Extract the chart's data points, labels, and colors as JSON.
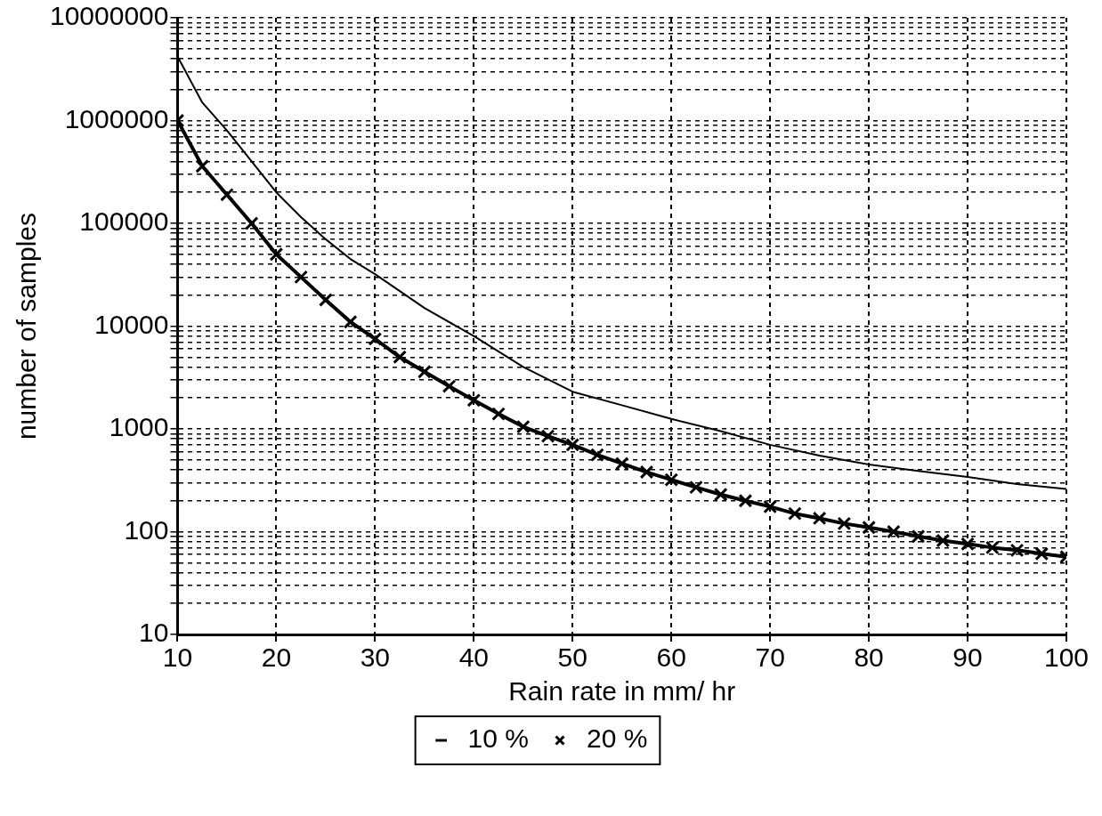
{
  "chart_data": {
    "type": "line",
    "xlabel": "Rain rate in mm/ hr",
    "ylabel": "number of samples",
    "log": "y",
    "grid": true,
    "legend": "bottom",
    "xlim": [
      10,
      100
    ],
    "xticks": [
      10,
      20,
      30,
      40,
      50,
      60,
      70,
      80,
      90,
      100
    ],
    "ylim": [
      10,
      10000000
    ],
    "yticks": [
      10,
      {
        "value": 20,
        "label": null
      },
      {
        "value": 30,
        "label": null
      },
      {
        "value": 40,
        "label": null
      },
      {
        "value": 50,
        "label": null
      },
      {
        "value": 60,
        "label": null
      },
      {
        "value": 70,
        "label": null
      },
      {
        "value": 80,
        "label": null
      },
      {
        "value": 90,
        "label": null
      },
      100,
      {
        "value": 200,
        "label": null
      },
      {
        "value": 300,
        "label": null
      },
      {
        "value": 400,
        "label": null
      },
      {
        "value": 500,
        "label": null
      },
      {
        "value": 600,
        "label": null
      },
      {
        "value": 700,
        "label": null
      },
      {
        "value": 800,
        "label": null
      },
      {
        "value": 900,
        "label": null
      },
      1000,
      {
        "value": 2000,
        "label": null
      },
      {
        "value": 3000,
        "label": null
      },
      {
        "value": 4000,
        "label": null
      },
      {
        "value": 5000,
        "label": null
      },
      {
        "value": 6000,
        "label": null
      },
      {
        "value": 7000,
        "label": null
      },
      {
        "value": 8000,
        "label": null
      },
      {
        "value": 9000,
        "label": null
      },
      10000,
      {
        "value": 20000,
        "label": null
      },
      {
        "value": 30000,
        "label": null
      },
      {
        "value": 40000,
        "label": null
      },
      {
        "value": 50000,
        "label": null
      },
      {
        "value": 60000,
        "label": null
      },
      {
        "value": 70000,
        "label": null
      },
      {
        "value": 80000,
        "label": null
      },
      {
        "value": 90000,
        "label": null
      },
      100000,
      {
        "value": 200000,
        "label": null
      },
      {
        "value": 300000,
        "label": null
      },
      {
        "value": 400000,
        "label": null
      },
      {
        "value": 500000,
        "label": null
      },
      {
        "value": 600000,
        "label": null
      },
      {
        "value": 700000,
        "label": null
      },
      {
        "value": 800000,
        "label": null
      },
      {
        "value": 900000,
        "label": null
      },
      1000000,
      {
        "value": 2000000,
        "label": null
      },
      {
        "value": 3000000,
        "label": null
      },
      {
        "value": 4000000,
        "label": null
      },
      {
        "value": 5000000,
        "label": null
      },
      {
        "value": 6000000,
        "label": null
      },
      {
        "value": 7000000,
        "label": null
      },
      {
        "value": 8000000,
        "label": null
      },
      {
        "value": 9000000,
        "label": null
      },
      10000000
    ],
    "series": [
      {
        "name": "10 %",
        "color": "#000000",
        "marker": "none",
        "x": [
          10,
          12.5,
          15,
          17.5,
          20,
          22.5,
          25,
          27.5,
          30,
          35,
          40,
          45,
          50,
          55,
          60,
          65,
          70,
          75,
          80,
          85,
          90,
          95,
          100
        ],
        "values": [
          4200000,
          1500000,
          800000,
          400000,
          200000,
          115000,
          70000,
          45000,
          32000,
          15000,
          8000,
          4000,
          2300,
          1700,
          1250,
          950,
          700,
          550,
          450,
          390,
          340,
          290,
          260
        ]
      },
      {
        "name": "20 %",
        "color": "#000000",
        "marker": "cross",
        "x": [
          10,
          12.5,
          15,
          17.5,
          20,
          22.5,
          25,
          27.5,
          30,
          32.5,
          35,
          37.5,
          40,
          42.5,
          45,
          47.5,
          50,
          52.5,
          55,
          57.5,
          60,
          62.5,
          65,
          67.5,
          70,
          72.5,
          75,
          77.5,
          80,
          82.5,
          85,
          87.5,
          90,
          92.5,
          95,
          97.5,
          100
        ],
        "values": [
          1000000,
          360000,
          190000,
          100000,
          50000,
          30000,
          18000,
          11000,
          7500,
          5000,
          3600,
          2600,
          1900,
          1400,
          1050,
          850,
          700,
          560,
          460,
          380,
          320,
          270,
          230,
          200,
          175,
          150,
          135,
          120,
          110,
          100,
          90,
          82,
          76,
          70,
          66,
          61,
          57
        ]
      }
    ]
  }
}
